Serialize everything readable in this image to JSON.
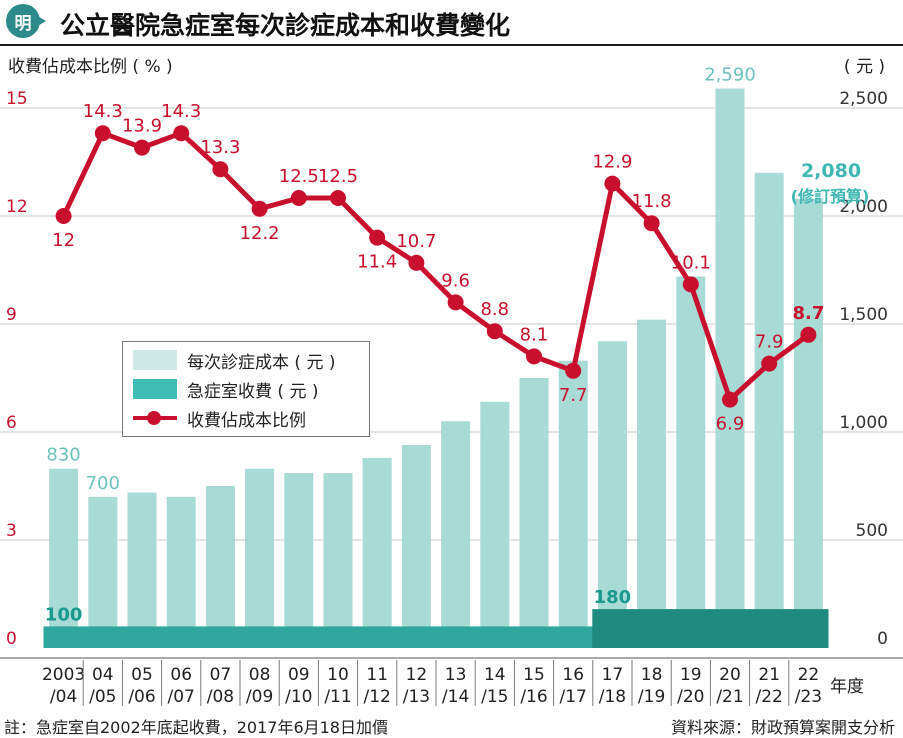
{
  "header": {
    "logo_text": "明",
    "title": "公立醫院急症室每次診症成本和收費變化"
  },
  "axes": {
    "left_label": "收費佔成本比例 ( % )",
    "right_label": "( 元 )",
    "x_unit": "年度"
  },
  "legend": {
    "cost": "每次診症成本 ( 元 )",
    "fee": "急症室收費 ( 元 )",
    "ratio": "收費佔成本比例"
  },
  "annotation": {
    "value": "2,080",
    "note": "(修訂預算)"
  },
  "footer": {
    "note": "註：急症室自2002年底起收費，2017年6月18日加價",
    "source": "資料來源：財政預算案開支分析"
  },
  "colors": {
    "cost_bar": "#a8dad6",
    "fee_bar": "#2f9c94",
    "ratio_line": "#c8102e",
    "cost_label": "#6cc2bd",
    "fee_label": "#1a9a8e",
    "logo": "#2c8a8a"
  },
  "chart_data": {
    "type": "bar",
    "categories": [
      "2003/04",
      "04/05",
      "05/06",
      "06/07",
      "07/08",
      "08/09",
      "09/10",
      "10/11",
      "11/12",
      "12/13",
      "13/14",
      "14/15",
      "15/16",
      "16/17",
      "17/18",
      "18/19",
      "19/20",
      "20/21",
      "21/22",
      "22/23"
    ],
    "category_lines": [
      [
        "2003",
        "/04"
      ],
      [
        "04",
        "/05"
      ],
      [
        "05",
        "/06"
      ],
      [
        "06",
        "/07"
      ],
      [
        "07",
        "/08"
      ],
      [
        "08",
        "/09"
      ],
      [
        "09",
        "/10"
      ],
      [
        "10",
        "/11"
      ],
      [
        "11",
        "/12"
      ],
      [
        "12",
        "/13"
      ],
      [
        "13",
        "/14"
      ],
      [
        "14",
        "/15"
      ],
      [
        "15",
        "/16"
      ],
      [
        "16",
        "/17"
      ],
      [
        "17",
        "/18"
      ],
      [
        "18",
        "/19"
      ],
      [
        "19",
        "/20"
      ],
      [
        "20",
        "/21"
      ],
      [
        "21",
        "/22"
      ],
      [
        "22",
        "/23"
      ]
    ],
    "series": [
      {
        "name": "每次診症成本 ( 元 )",
        "axis": "right",
        "values": [
          830,
          700,
          720,
          700,
          750,
          830,
          810,
          810,
          880,
          940,
          1050,
          1140,
          1250,
          1330,
          1420,
          1520,
          1720,
          2590,
          2200,
          2080
        ]
      },
      {
        "name": "急症室收費 ( 元 )",
        "axis": "right",
        "values": [
          100,
          100,
          100,
          100,
          100,
          100,
          100,
          100,
          100,
          100,
          100,
          100,
          100,
          100,
          180,
          180,
          180,
          180,
          180,
          180
        ]
      },
      {
        "name": "收費佔成本比例",
        "axis": "left",
        "type": "line",
        "values": [
          12,
          14.3,
          13.9,
          14.3,
          13.3,
          12.2,
          12.5,
          12.5,
          11.4,
          10.7,
          9.6,
          8.8,
          8.1,
          7.7,
          12.9,
          11.8,
          10.1,
          6.9,
          7.9,
          8.7
        ]
      }
    ],
    "cost_labels": [
      {
        "index": 0,
        "text": "830"
      },
      {
        "index": 1,
        "text": "700"
      },
      {
        "index": 17,
        "text": "2,590"
      }
    ],
    "fee_labels": [
      {
        "index": 0,
        "text": "100"
      },
      {
        "index": 14,
        "text": "180"
      }
    ],
    "ratio_labels": [
      "12",
      "14.3",
      "13.9",
      "14.3",
      "13.3",
      "12.2",
      "12.5",
      "12.5",
      "11.4",
      "10.7",
      "9.6",
      "8.8",
      "8.1",
      "7.7",
      "12.9",
      "11.8",
      "10.1",
      "6.9",
      "7.9",
      "8.7"
    ],
    "left_axis": {
      "ylim": [
        0,
        15
      ],
      "ticks": [
        "0",
        "3",
        "6",
        "9",
        "12",
        "15"
      ]
    },
    "right_axis": {
      "ylim": [
        0,
        2500
      ],
      "ticks": [
        "0",
        "500",
        "1,000",
        "1,500",
        "2,000",
        "2,500"
      ]
    },
    "grid": true,
    "legend_position": "center-left"
  }
}
